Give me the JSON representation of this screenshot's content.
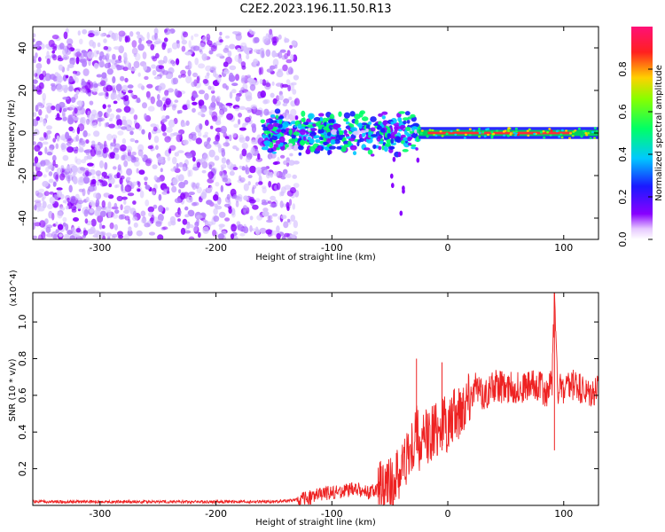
{
  "title": "C2E2.2023.196.11.50.R13",
  "colors": {
    "snr_line": "#ee2222",
    "noise": "#8800ff",
    "noise_light": "#d8c4ff"
  },
  "chart_data": [
    {
      "type": "heatmap",
      "xlabel": "Height of straight line (km)",
      "ylabel": "Frequency (Hz)",
      "xlim": [
        -358,
        130
      ],
      "ylim": [
        -50,
        50
      ],
      "x_ticks": [
        "-300",
        "-200",
        "-100",
        "0",
        "100"
      ],
      "x_tick_values": [
        -300,
        -200,
        -100,
        0,
        100
      ],
      "y_ticks": [
        "-40",
        "-20",
        "0",
        "20",
        "40"
      ],
      "y_tick_values": [
        -40,
        -20,
        0,
        20,
        40
      ],
      "colorbar": {
        "label": "Normalized spectral amplitude",
        "range": [
          0,
          1
        ],
        "ticks": [
          "0.0",
          "0.2",
          "0.4",
          "0.6",
          "0.8"
        ],
        "tick_values": [
          0.0,
          0.2,
          0.4,
          0.6,
          0.8
        ],
        "colormap": "rainbow (white→violet→blue→cyan→green→yellow→red→pink)"
      },
      "features": [
        {
          "region": "noise",
          "x_range": [
            -358,
            -130
          ],
          "y_range": [
            -50,
            48
          ],
          "amplitude": 0.1
        },
        {
          "region": "signal_scatter",
          "x_range": [
            -160,
            -25
          ],
          "y_center": 0,
          "y_spread": 8,
          "amplitude": 0.35
        },
        {
          "region": "signal_line",
          "x_range": [
            -25,
            130
          ],
          "y_center": 0,
          "amplitude": 0.9
        }
      ]
    },
    {
      "type": "line",
      "xlabel": "Height of straight line (km)",
      "ylabel": "SNR (10 * v/v)",
      "y_multiplier": "(x10^4)",
      "xlim": [
        -358,
        130
      ],
      "ylim": [
        0,
        1.16
      ],
      "x_ticks": [
        "-300",
        "-200",
        "-100",
        "0",
        "100"
      ],
      "x_tick_values": [
        -300,
        -200,
        -100,
        0,
        100
      ],
      "y_ticks": [
        "0.2",
        "0.4",
        "0.6",
        "0.8",
        "1.0"
      ],
      "y_tick_values": [
        0.2,
        0.4,
        0.6,
        0.8,
        1.0
      ],
      "series": [
        {
          "x": [
            -358,
            -300,
            -250,
            -200,
            -150,
            -130,
            -120,
            -110,
            -100,
            -90,
            -80,
            -70,
            -60,
            -50,
            -45,
            -40,
            -35,
            -30,
            -27,
            -25,
            -20,
            -15,
            -10,
            -5,
            0,
            5,
            10,
            15,
            20,
            25,
            30,
            40,
            50,
            60,
            70,
            80,
            85,
            90,
            92,
            95,
            100,
            110,
            120,
            130
          ],
          "y": [
            0.02,
            0.02,
            0.02,
            0.02,
            0.02,
            0.03,
            0.04,
            0.06,
            0.07,
            0.08,
            0.09,
            0.07,
            0.08,
            0.1,
            0.15,
            0.2,
            0.28,
            0.3,
            0.45,
            0.3,
            0.35,
            0.4,
            0.42,
            0.45,
            0.42,
            0.48,
            0.52,
            0.58,
            0.62,
            0.64,
            0.6,
            0.65,
            0.64,
            0.64,
            0.65,
            0.66,
            0.6,
            0.68,
            1.16,
            0.64,
            0.62,
            0.66,
            0.6,
            0.62
          ]
        }
      ],
      "spikes": [
        {
          "x": -27,
          "y": 0.8
        },
        {
          "x": -5,
          "y": 0.78
        },
        {
          "x": 92,
          "y": 1.16
        }
      ]
    }
  ]
}
